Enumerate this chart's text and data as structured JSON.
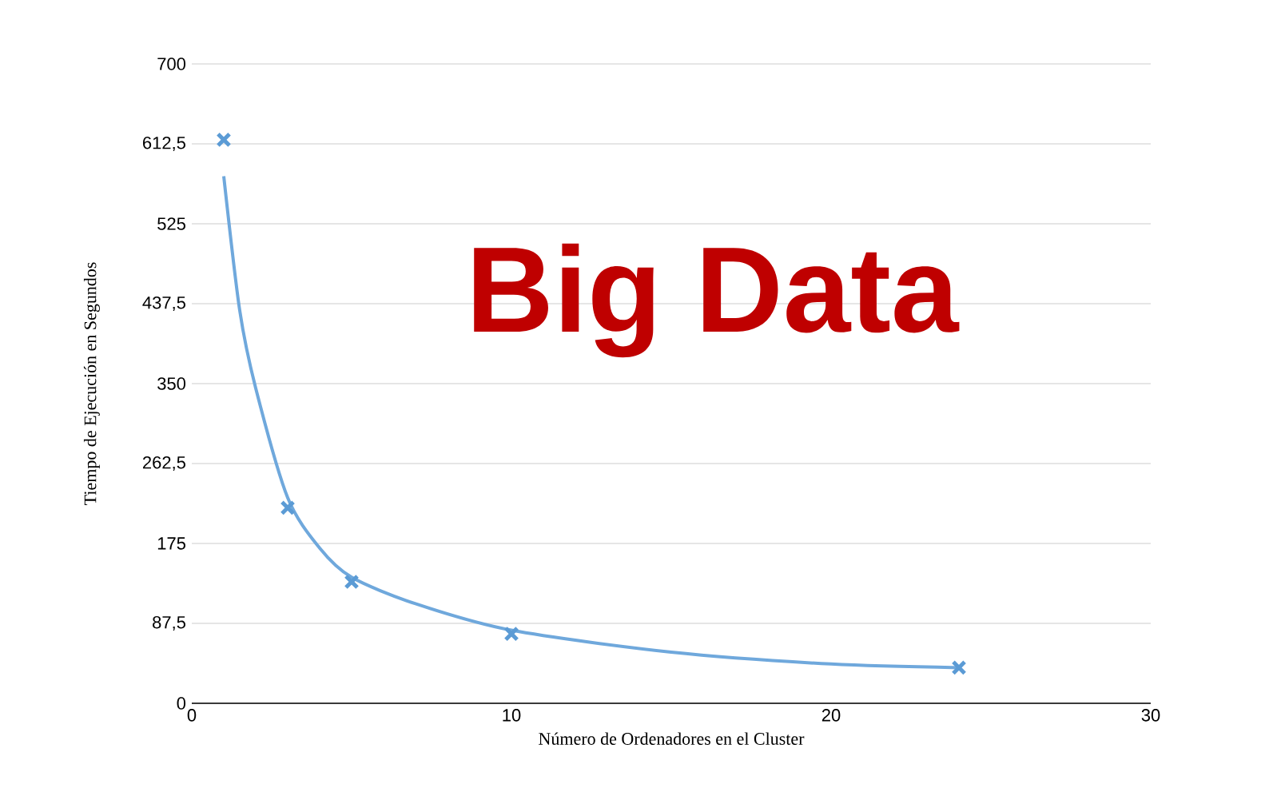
{
  "chart_data": {
    "type": "scatter",
    "xlabel": "Número de Ordenadores en el Cluster",
    "ylabel": "Tiempo de Ejecución en Segundos",
    "annotations": [
      "Big Data"
    ],
    "series": [
      {
        "color": "#5b9bd5",
        "marker": "cross",
        "x": [
          1,
          3,
          5,
          10,
          24
        ],
        "values": [
          617,
          214,
          133,
          76,
          39
        ]
      },
      {
        "type": "line",
        "color": "#6fa8dc",
        "marker": "none",
        "x": [
          1,
          1.5,
          2,
          3,
          4,
          5,
          7,
          10,
          15,
          20,
          24
        ],
        "values": [
          577,
          430,
          345,
          225,
          170,
          138,
          109,
          80,
          56,
          43,
          39
        ]
      }
    ],
    "xlim": [
      0,
      30
    ],
    "xticks": [
      0,
      10,
      20,
      30
    ],
    "ylim": [
      0,
      700
    ],
    "yticks": [
      0,
      {
        "value": 87.5,
        "label": "87,5"
      },
      175,
      {
        "value": 262.5,
        "label": "262,5"
      },
      350,
      {
        "value": 437.5,
        "label": "437,5"
      },
      525,
      {
        "value": 612.5,
        "label": "612,5"
      },
      700
    ],
    "grid": "y"
  }
}
